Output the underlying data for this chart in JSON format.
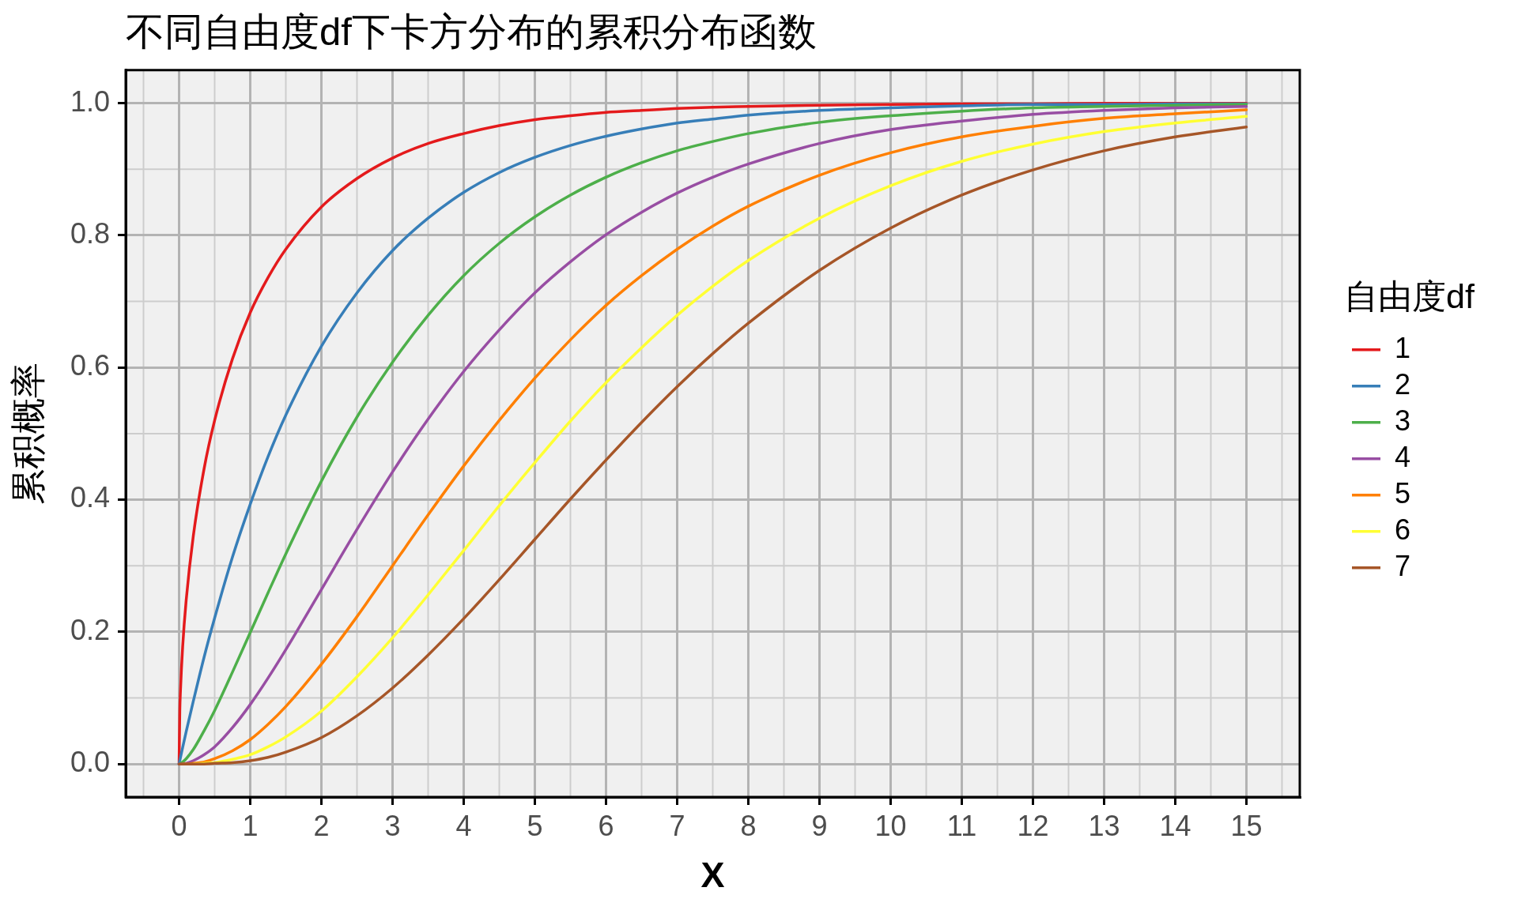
{
  "chart_data": {
    "type": "line",
    "title": "不同自由度df下卡方分布的累积分布函数",
    "xlabel": "X",
    "ylabel": "累积概率",
    "legend_title": "自由度df",
    "legend": "right",
    "grid": true,
    "xlim": [
      -0.75,
      15.75
    ],
    "xticks": [
      0,
      1,
      2,
      3,
      4,
      5,
      6,
      7,
      8,
      9,
      10,
      11,
      12,
      13,
      14,
      15
    ],
    "ylim": [
      -0.05,
      1.05
    ],
    "yticks": [
      {
        "value": 0,
        "label": "0.0"
      },
      0.2,
      0.4,
      0.6,
      0.8,
      {
        "value": 1,
        "label": "1.0"
      }
    ],
    "x": [
      0,
      0.01,
      0.02,
      0.05,
      0.1,
      0.2,
      0.35,
      0.5,
      0.75,
      1,
      1.25,
      1.5,
      2,
      2.5,
      3,
      3.5,
      4,
      4.5,
      5,
      5.5,
      6,
      6.5,
      7,
      7.5,
      8,
      9,
      10,
      11,
      12,
      13,
      14,
      15
    ],
    "series": [
      {
        "name": "1",
        "color": "#e41a1c",
        "values": [
          0,
          0.08,
          0.112,
          0.177,
          0.248,
          0.345,
          0.446,
          0.52,
          0.613,
          0.683,
          0.736,
          0.779,
          0.843,
          0.886,
          0.917,
          0.939,
          0.954,
          0.966,
          0.975,
          0.981,
          0.986,
          0.989,
          0.992,
          0.994,
          0.995,
          0.997,
          0.998,
          0.999,
          0.999,
          1.0,
          1.0,
          1.0
        ]
      },
      {
        "name": "2",
        "color": "#377eb8",
        "values": [
          0,
          0.005,
          0.01,
          0.025,
          0.049,
          0.095,
          0.161,
          0.221,
          0.313,
          0.393,
          0.465,
          0.528,
          0.632,
          0.713,
          0.777,
          0.826,
          0.865,
          0.895,
          0.918,
          0.936,
          0.95,
          0.961,
          0.97,
          0.976,
          0.982,
          0.989,
          0.993,
          0.996,
          0.998,
          0.998,
          0.999,
          0.999
        ]
      },
      {
        "name": "3",
        "color": "#4daf4a",
        "values": [
          0,
          0,
          0.001,
          0.003,
          0.008,
          0.022,
          0.05,
          0.081,
          0.139,
          0.199,
          0.259,
          0.318,
          0.428,
          0.525,
          0.608,
          0.679,
          0.739,
          0.788,
          0.828,
          0.861,
          0.888,
          0.91,
          0.928,
          0.942,
          0.954,
          0.971,
          0.981,
          0.988,
          0.993,
          0.995,
          0.997,
          0.998
        ]
      },
      {
        "name": "4",
        "color": "#984ea3",
        "values": [
          0,
          0,
          0,
          0,
          0.001,
          0.005,
          0.014,
          0.026,
          0.055,
          0.09,
          0.13,
          0.173,
          0.264,
          0.355,
          0.442,
          0.522,
          0.594,
          0.657,
          0.713,
          0.76,
          0.801,
          0.835,
          0.864,
          0.888,
          0.908,
          0.939,
          0.96,
          0.973,
          0.983,
          0.989,
          0.993,
          0.995
        ]
      },
      {
        "name": "5",
        "color": "#ff7f00",
        "values": [
          null,
          null,
          null,
          0,
          0,
          0.001,
          0.003,
          0.008,
          0.02,
          0.037,
          0.06,
          0.087,
          0.151,
          0.223,
          0.3,
          0.377,
          0.451,
          0.52,
          0.584,
          0.642,
          0.694,
          0.739,
          0.779,
          0.814,
          0.844,
          0.891,
          0.925,
          0.949,
          0.965,
          0.977,
          0.984,
          0.99
        ]
      },
      {
        "name": "6",
        "color": "#ffff33",
        "values": [
          null,
          null,
          null,
          null,
          null,
          0,
          0.001,
          0.002,
          0.007,
          0.014,
          0.026,
          0.041,
          0.08,
          0.132,
          0.191,
          0.256,
          0.323,
          0.391,
          0.456,
          0.519,
          0.577,
          0.63,
          0.679,
          0.723,
          0.762,
          0.826,
          0.875,
          0.912,
          0.938,
          0.957,
          0.97,
          0.98
        ]
      },
      {
        "name": "7",
        "color": "#a65628",
        "values": [
          0,
          0,
          0,
          0,
          0,
          0,
          0,
          0.001,
          0.002,
          0.005,
          0.01,
          0.018,
          0.04,
          0.073,
          0.115,
          0.165,
          0.22,
          0.279,
          0.34,
          0.401,
          0.46,
          0.517,
          0.571,
          0.621,
          0.667,
          0.747,
          0.811,
          0.861,
          0.899,
          0.928,
          0.949,
          0.964
        ]
      }
    ]
  }
}
